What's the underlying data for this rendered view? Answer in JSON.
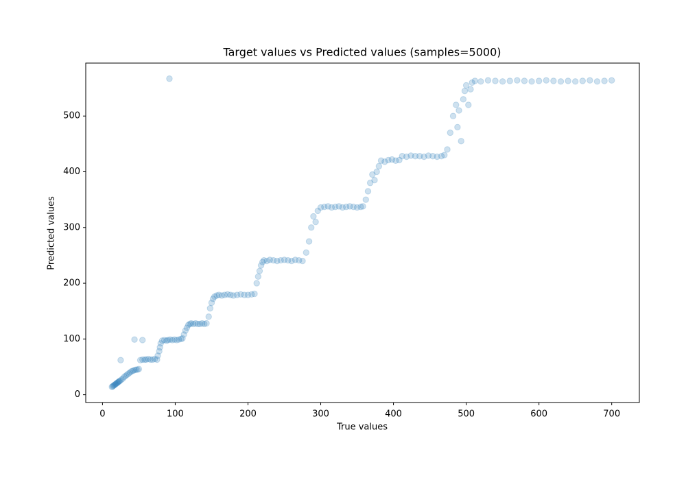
{
  "chart_data": {
    "type": "scatter",
    "title": "Target values vs Predicted values (samples=5000)",
    "x_label": "True values",
    "y_label": "Predicted values",
    "color": "#1f77b4",
    "opacity": 0.22,
    "xlim": [
      -23,
      738
    ],
    "ylim": [
      -14,
      595
    ],
    "xticks": [
      0,
      100,
      200,
      300,
      400,
      500,
      600,
      700
    ],
    "yticks": [
      0,
      100,
      200,
      300,
      400,
      500
    ],
    "grid": false,
    "x": [
      13,
      14,
      15,
      16,
      17,
      18,
      19,
      20,
      21,
      22,
      23,
      24,
      26,
      28,
      30,
      32,
      34,
      36,
      38,
      40,
      42,
      44,
      46,
      48,
      50,
      25,
      44,
      55,
      52,
      55,
      58,
      60,
      63,
      66,
      69,
      72,
      75,
      76,
      78,
      79,
      80,
      82,
      85,
      88,
      90,
      93,
      96,
      99,
      102,
      105,
      108,
      110,
      92,
      112,
      114,
      116,
      118,
      120,
      122,
      125,
      128,
      131,
      134,
      137,
      140,
      143,
      146,
      148,
      150,
      152,
      154,
      157,
      160,
      164,
      168,
      172,
      176,
      180,
      185,
      190,
      195,
      200,
      205,
      209,
      212,
      214,
      216,
      218,
      220,
      222,
      226,
      230,
      235,
      240,
      245,
      250,
      255,
      260,
      265,
      270,
      275,
      280,
      284,
      287,
      290,
      293,
      296,
      300,
      305,
      310,
      315,
      320,
      325,
      330,
      335,
      340,
      345,
      350,
      355,
      358,
      362,
      365,
      368,
      371,
      374,
      377,
      380,
      383,
      388,
      393,
      398,
      403,
      408,
      412,
      418,
      424,
      430,
      436,
      442,
      448,
      454,
      460,
      466,
      470,
      474,
      478,
      482,
      486,
      488,
      490,
      493,
      496,
      498,
      500,
      503,
      506,
      508,
      512,
      520,
      530,
      540,
      550,
      560,
      570,
      580,
      590,
      600,
      610,
      620,
      630,
      640,
      650,
      660,
      670,
      680,
      690,
      700
    ],
    "y": [
      14,
      15,
      16,
      17,
      18,
      19,
      20,
      21,
      22,
      23,
      24,
      25,
      27,
      29,
      32,
      34,
      36,
      38,
      40,
      42,
      43,
      44,
      45,
      45,
      46,
      62,
      99,
      98,
      62,
      63,
      63,
      63,
      64,
      63,
      63,
      64,
      63,
      70,
      78,
      85,
      92,
      97,
      98,
      97,
      98,
      99,
      98,
      99,
      98,
      99,
      100,
      101,
      567,
      108,
      115,
      120,
      125,
      127,
      128,
      127,
      128,
      127,
      127,
      128,
      127,
      128,
      140,
      155,
      165,
      172,
      176,
      178,
      179,
      178,
      179,
      180,
      179,
      178,
      179,
      180,
      179,
      179,
      180,
      181,
      200,
      212,
      222,
      232,
      238,
      241,
      240,
      242,
      241,
      240,
      241,
      242,
      241,
      240,
      242,
      241,
      240,
      255,
      275,
      300,
      320,
      310,
      330,
      336,
      337,
      338,
      336,
      337,
      338,
      336,
      337,
      338,
      337,
      336,
      337,
      338,
      350,
      365,
      380,
      395,
      385,
      400,
      410,
      420,
      418,
      421,
      422,
      420,
      421,
      428,
      427,
      429,
      428,
      428,
      427,
      429,
      428,
      427,
      428,
      430,
      440,
      470,
      500,
      520,
      480,
      510,
      455,
      530,
      545,
      555,
      520,
      548,
      560,
      563,
      562,
      564,
      563,
      562,
      563,
      564,
      563,
      562,
      563,
      564,
      563,
      562,
      563,
      562,
      563,
      564,
      562,
      563,
      564
    ]
  }
}
